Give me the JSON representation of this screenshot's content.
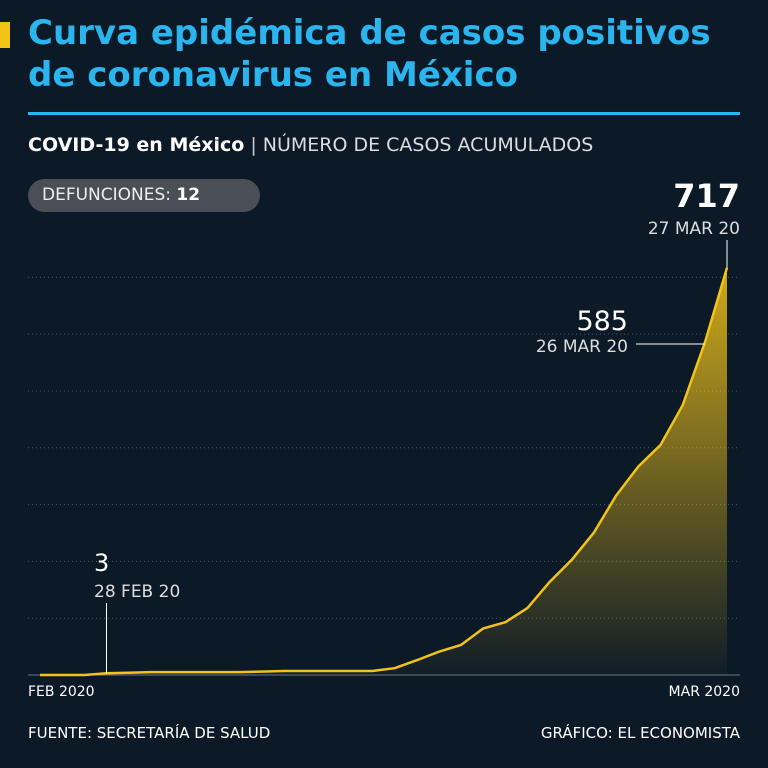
{
  "header": {
    "title": "Curva epidémica de casos positivos de coronavirus en México"
  },
  "chart_data": {
    "type": "area",
    "subtitle_bold": "COVID-19 en México",
    "subtitle": "NÚMERO DE CASOS ACUMULADOS",
    "badge": {
      "label": "DEFUNCIONES:",
      "value": 12
    },
    "categories": [
      "FEB 2020",
      null,
      null,
      null,
      null,
      null,
      null,
      null,
      null,
      null,
      null,
      null,
      null,
      null,
      null,
      null,
      null,
      null,
      null,
      null,
      null,
      null,
      null,
      null,
      null,
      null,
      null,
      null,
      null,
      null,
      null,
      "MAR 2020"
    ],
    "series": [
      {
        "name": "Casos acumulados",
        "color": "#f2c318",
        "values": [
          0,
          0,
          0,
          3,
          4,
          5,
          5,
          5,
          5,
          5,
          6,
          7,
          7,
          7,
          7,
          7,
          12,
          26,
          41,
          53,
          82,
          93,
          118,
          164,
          203,
          251,
          316,
          367,
          405,
          475,
          585,
          717
        ]
      }
    ],
    "annotations": [
      {
        "value": 3,
        "label": "28 FEB 20"
      },
      {
        "value": 585,
        "label": "26 MAR 20"
      },
      {
        "value": 717,
        "label": "27 MAR 20"
      }
    ],
    "ylim": [
      0,
      720
    ],
    "yticks": [
      0,
      100,
      200,
      300,
      400,
      500,
      600,
      700
    ],
    "grid": true,
    "source": "FUENTE: SECRETARÍA DE SALUD",
    "credit": "GRÁFICO: EL ECONOMISTA"
  }
}
